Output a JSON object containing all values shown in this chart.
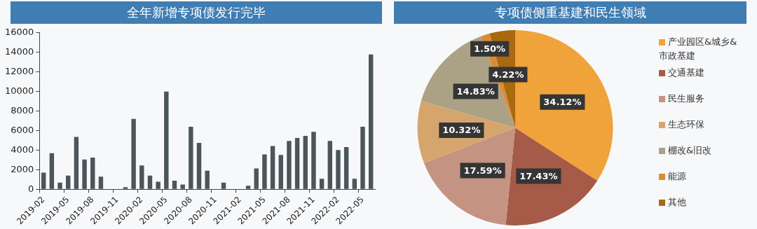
{
  "chart_data": [
    {
      "type": "bar",
      "title": "全年新增专项债发行完毕",
      "categories": [
        "2019-02",
        null,
        null,
        "2019-05",
        null,
        null,
        "2019-08",
        null,
        null,
        "2019-11",
        null,
        null,
        "2020-02",
        null,
        null,
        "2020-05",
        null,
        null,
        "2020-08",
        null,
        null,
        "2020-11",
        null,
        null,
        "2021-02",
        null,
        null,
        "2021-05",
        null,
        null,
        "2021-08",
        null,
        null,
        "2021-11",
        null,
        null,
        "2022-02",
        null,
        null,
        "2022-05",
        null
      ],
      "values": [
        1700,
        3700,
        680,
        1400,
        5350,
        3050,
        3250,
        1300,
        0,
        0,
        230,
        7200,
        2450,
        1400,
        780,
        10000,
        880,
        490,
        6400,
        4750,
        1900,
        0,
        680,
        0,
        0,
        360,
        2130,
        3560,
        4420,
        3510,
        4940,
        5250,
        5460,
        5880,
        1090,
        4940,
        4010,
        4320,
        1090,
        6400,
        13790
      ],
      "color": "#4b555a",
      "ylim": [
        0,
        16000
      ],
      "yticks": [
        0,
        2000,
        4000,
        6000,
        8000,
        10000,
        12000,
        14000,
        16000
      ],
      "grid": false
    },
    {
      "type": "pie",
      "title": "专项债侧重基建和民生领域",
      "categories": [
        "产业园区&城乡&市政基建",
        "交通基建",
        "民生服务",
        "生态环保",
        "棚改&旧改",
        "能源",
        "其他"
      ],
      "values": [
        34.12,
        17.43,
        17.59,
        10.32,
        14.83,
        1.5,
        4.22
      ],
      "colors": [
        "#f0a33a",
        "#a65a48",
        "#c49382",
        "#d6a56e",
        "#aba285",
        "#de8a35",
        "#a8690f"
      ],
      "value_labels": [
        "34.12%",
        "17.43%",
        "17.59%",
        "10.32%",
        "14.83%",
        "1.50%",
        "4.22%"
      ],
      "legend": "right"
    }
  ]
}
